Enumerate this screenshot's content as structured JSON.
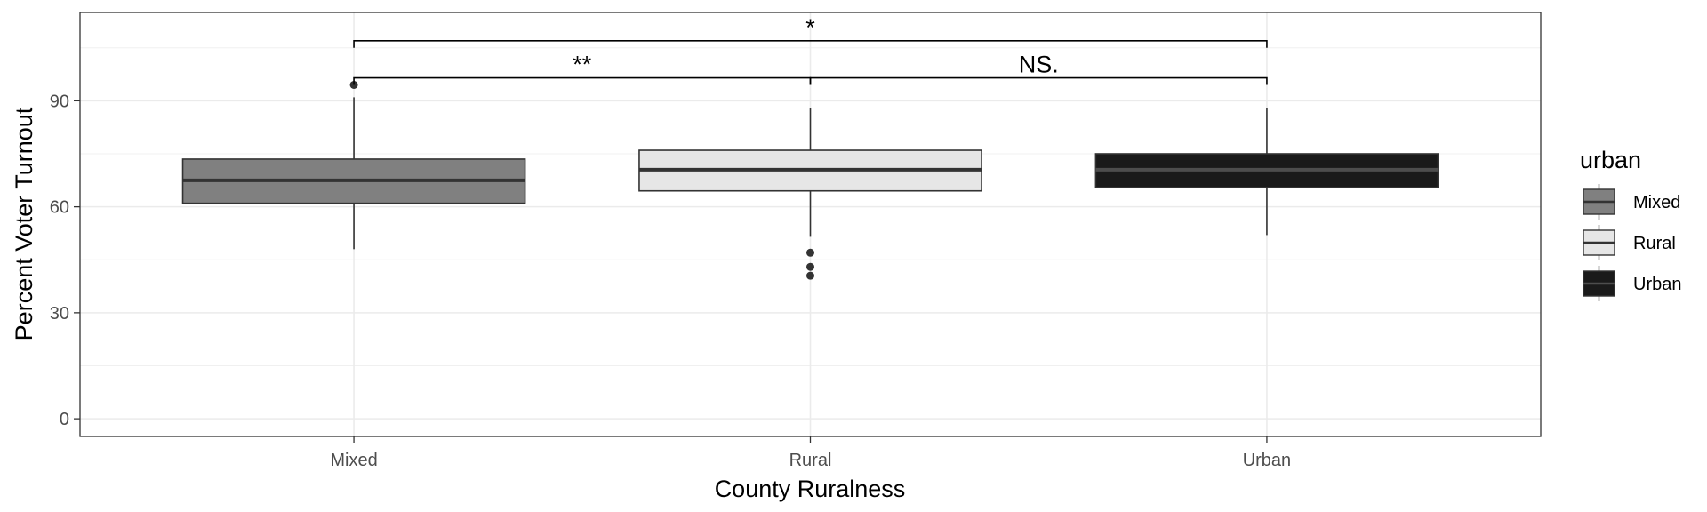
{
  "chart_data": {
    "type": "box",
    "title": "",
    "xlabel": "County Ruralness",
    "ylabel": "Percent Voter Turnout",
    "ylim": [
      -5,
      115
    ],
    "yticks": [
      0,
      30,
      60,
      90
    ],
    "categories": [
      "Mixed",
      "Rural",
      "Urban"
    ],
    "grid": true,
    "boxes": [
      {
        "category": "Mixed",
        "fill": "#808080",
        "median_color": "#333333",
        "whisker_low": 48,
        "q1": 61,
        "median": 67.5,
        "q3": 73.5,
        "whisker_high": 91,
        "outliers": [
          94.5
        ]
      },
      {
        "category": "Rural",
        "fill": "#e6e6e6",
        "median_color": "#333333",
        "whisker_low": 51.5,
        "q1": 64.5,
        "median": 70.5,
        "q3": 76,
        "whisker_high": 88,
        "outliers": [
          47,
          43,
          40.5
        ]
      },
      {
        "category": "Urban",
        "fill": "#1a1a1a",
        "median_color": "#4d4d4d",
        "whisker_low": 52,
        "q1": 65.5,
        "median": 70.5,
        "q3": 75,
        "whisker_high": 88,
        "outliers": []
      }
    ],
    "legend": {
      "title": "urban",
      "placement": "right",
      "entries": [
        "Mixed",
        "Rural",
        "Urban"
      ]
    },
    "significance": [
      {
        "from": "Mixed",
        "to": "Urban",
        "y": 107,
        "label": "*"
      },
      {
        "from": "Mixed",
        "to": "Rural",
        "y": 96.5,
        "label": "**"
      },
      {
        "from": "Rural",
        "to": "Urban",
        "y": 96.5,
        "label": "NS."
      }
    ]
  }
}
